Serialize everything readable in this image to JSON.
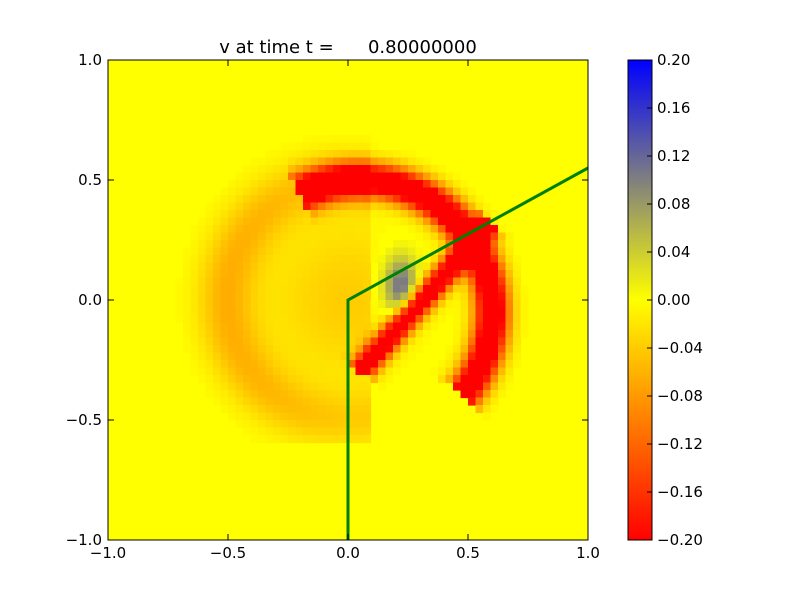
{
  "chart_data": {
    "type": "heatmap",
    "title": "v at time t =      0.80000000",
    "xlim": [
      -1.0,
      1.0
    ],
    "ylim": [
      -1.0,
      1.0
    ],
    "x_ticks": [
      -1.0,
      -0.5,
      0.0,
      0.5,
      1.0
    ],
    "y_ticks": [
      -1.0,
      -0.5,
      0.0,
      0.5,
      1.0
    ],
    "x_tick_labels": [
      "−1.0",
      "−0.5",
      "0.0",
      "0.5",
      "1.0"
    ],
    "y_tick_labels": [
      "−1.0",
      "−0.5",
      "0.0",
      "0.5",
      "1.0"
    ],
    "grid": false,
    "colorbar": {
      "range": [
        -0.2,
        0.2
      ],
      "ticks": [
        -0.2,
        -0.16,
        -0.12,
        -0.08,
        -0.04,
        0.0,
        0.04,
        0.08,
        0.12,
        0.16,
        0.2
      ],
      "tick_labels": [
        "−0.20",
        "−0.16",
        "−0.12",
        "−0.08",
        "−0.04",
        "0.00",
        "0.04",
        "0.08",
        "0.12",
        "0.16",
        "0.20"
      ],
      "colors": [
        "#ff0000",
        "#ffff00",
        "#0000ff"
      ]
    },
    "field_features": {
      "background_value": 0.0,
      "red_arc": {
        "value": -0.2,
        "center": [
          0.0,
          0.0
        ],
        "x_extent": [
          -0.55,
          0.6
        ],
        "y_extent": [
          -0.35,
          0.58
        ]
      },
      "orange_arc": {
        "value": -0.06,
        "x_extent": [
          -0.58,
          0.05
        ],
        "y_extent": [
          -0.55,
          0.45
        ]
      },
      "blue_blob": {
        "value": 0.12,
        "center": [
          0.22,
          0.06
        ]
      }
    },
    "overlay_line": {
      "color": "#008000",
      "points": [
        [
          0.0,
          -1.0
        ],
        [
          0.0,
          0.0
        ],
        [
          1.0,
          0.55
        ]
      ]
    }
  }
}
